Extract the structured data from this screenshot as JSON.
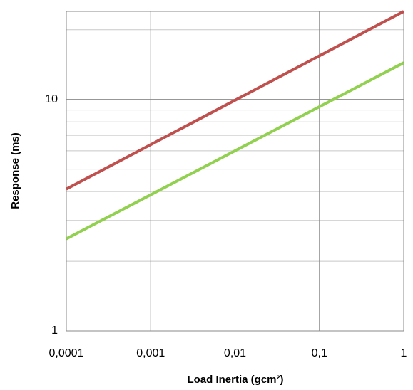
{
  "chart_data": {
    "type": "line",
    "x_label": "Load Inertia (gcm²)",
    "y_label": "Response (ms)",
    "x": [
      0.0001,
      1
    ],
    "series": [
      {
        "color": "#c0504d",
        "values": [
          4.1,
          24
        ]
      },
      {
        "color": "#92d050",
        "values": [
          2.5,
          14.4
        ]
      }
    ],
    "xlog": true,
    "ylog": true,
    "xlim": [
      0.0001,
      1
    ],
    "ylim": [
      1,
      24
    ],
    "xticks": [
      {
        "value": 0.0001,
        "label": "0,0001"
      },
      {
        "value": 0.001,
        "label": "0,001"
      },
      {
        "value": 0.01,
        "label": "0,01"
      },
      {
        "value": 0.1,
        "label": "0,1"
      },
      1
    ],
    "yticks": [
      1,
      10
    ],
    "yminor": [
      2,
      3,
      4,
      5,
      6,
      7,
      8,
      9,
      20
    ],
    "grid": true
  }
}
